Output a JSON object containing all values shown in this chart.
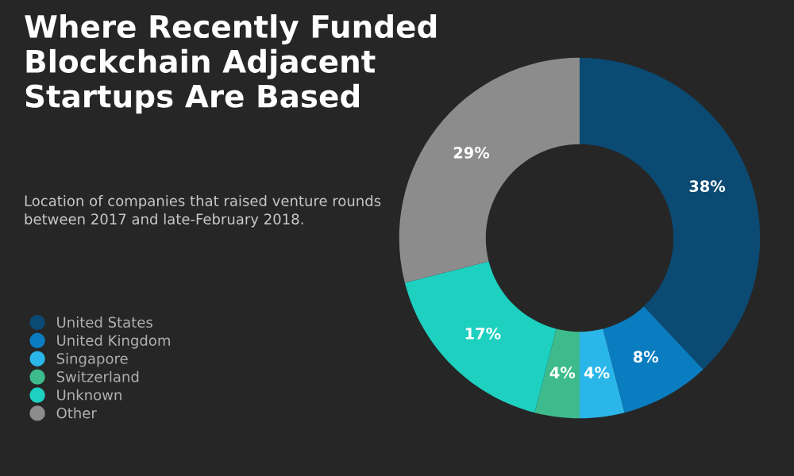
{
  "chart_data": {
    "type": "donut",
    "title": "Where Recently Funded Blockchain Adjacent Startups Are Based",
    "subtitle": "Location of companies that raised venture rounds between 2017 and late-February 2018.",
    "categories": [
      "United States",
      "United Kingdom",
      "Singapore",
      "Switzerland",
      "Unknown",
      "Other"
    ],
    "values": [
      38,
      8,
      4,
      4,
      17,
      29
    ],
    "colors": [
      "#0b4a72",
      "#0a7cc0",
      "#2bb6ea",
      "#3dbb8c",
      "#1dd0c0",
      "#8c8c8c"
    ],
    "value_labels": [
      "38%",
      "8%",
      "4%",
      "4%",
      "17%",
      "29%"
    ],
    "legend": "bottom left"
  }
}
